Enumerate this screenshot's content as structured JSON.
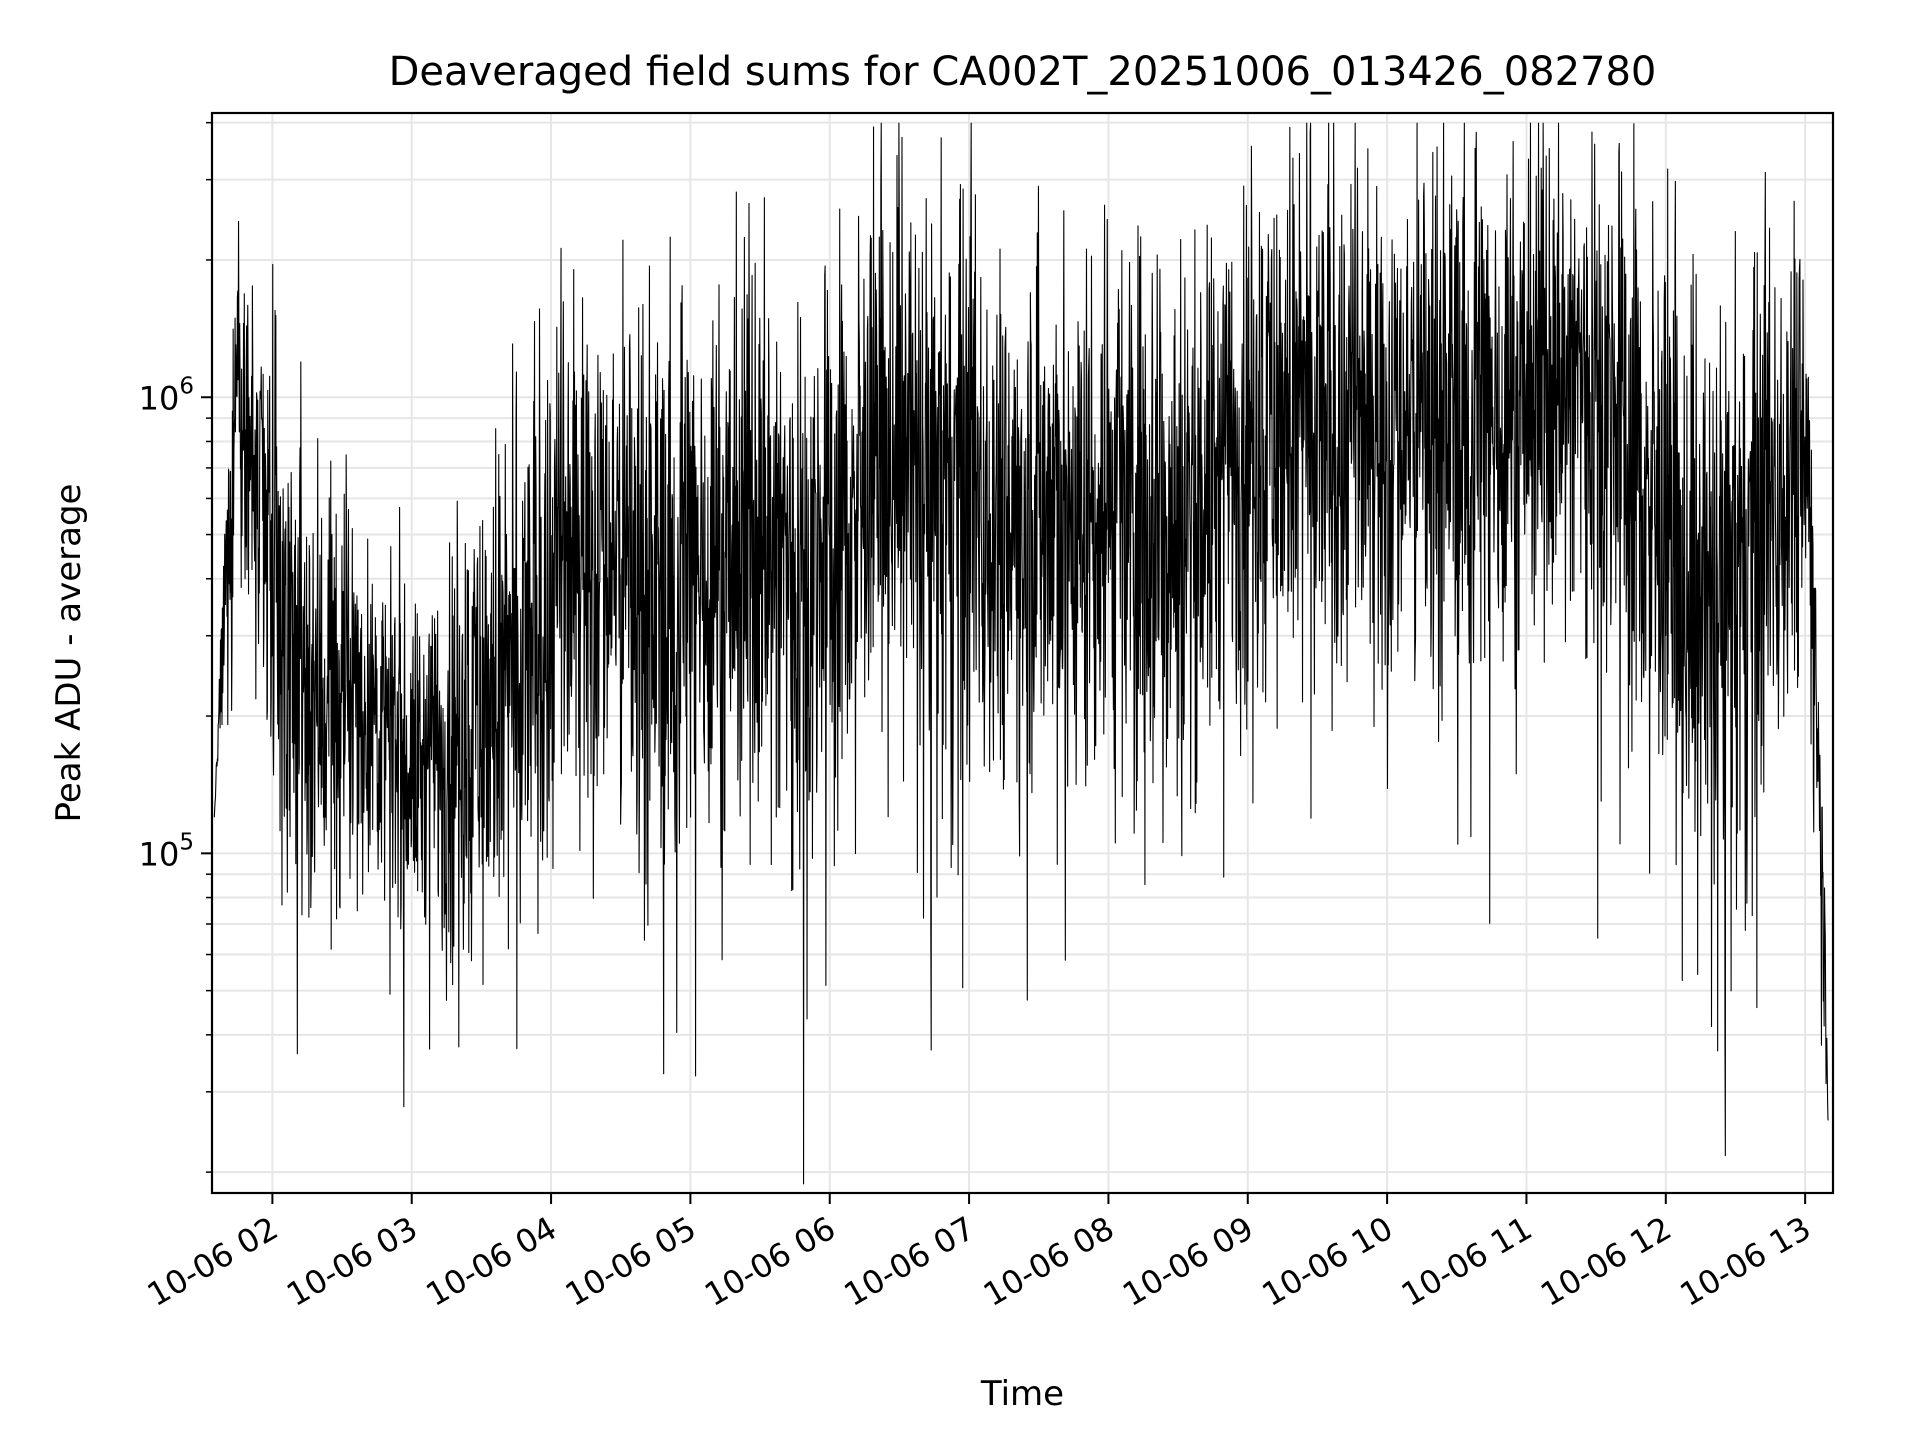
{
  "chart_data": {
    "type": "line",
    "title": "Deaveraged field sums for CA002T_20251006_013426_082780",
    "xlabel": "Time",
    "ylabel": "Peak ADU - average",
    "yscale": "log",
    "ylim": [
      18000,
      4200000
    ],
    "xlim": [
      "2025-10-06 01:34",
      "2025-10-06 13:12"
    ],
    "grid": true,
    "line_color": "#000000",
    "x_ticks": [
      "10-06 02",
      "10-06 03",
      "10-06 04",
      "10-06 05",
      "10-06 06",
      "10-06 07",
      "10-06 08",
      "10-06 09",
      "10-06 10",
      "10-06 11",
      "10-06 12",
      "10-06 13"
    ],
    "y_ticks": [
      {
        "value": 100000,
        "base": "10",
        "exp": "5"
      },
      {
        "value": 1000000,
        "base": "10",
        "exp": "6"
      }
    ],
    "series": [
      {
        "x": [
          "2025-10-06 01:35",
          "2025-10-06 01:42",
          "2025-10-06 01:45",
          "2025-10-06 01:48",
          "2025-10-06 01:52",
          "2025-10-06 02:00",
          "2025-10-06 02:15",
          "2025-10-06 02:30",
          "2025-10-06 02:45",
          "2025-10-06 03:00",
          "2025-10-06 03:15",
          "2025-10-06 03:30",
          "2025-10-06 03:45",
          "2025-10-06 04:00",
          "2025-10-06 04:15",
          "2025-10-06 04:30",
          "2025-10-06 04:45",
          "2025-10-06 05:00",
          "2025-10-06 05:15",
          "2025-10-06 05:30",
          "2025-10-06 05:45",
          "2025-10-06 06:00",
          "2025-10-06 06:15",
          "2025-10-06 06:30",
          "2025-10-06 06:45",
          "2025-10-06 07:00",
          "2025-10-06 07:15",
          "2025-10-06 07:30",
          "2025-10-06 07:45",
          "2025-10-06 08:00",
          "2025-10-06 08:15",
          "2025-10-06 08:30",
          "2025-10-06 08:45",
          "2025-10-06 09:00",
          "2025-10-06 09:15",
          "2025-10-06 09:30",
          "2025-10-06 09:45",
          "2025-10-06 10:00",
          "2025-10-06 10:15",
          "2025-10-06 10:30",
          "2025-10-06 10:45",
          "2025-10-06 11:00",
          "2025-10-06 11:15",
          "2025-10-06 11:30",
          "2025-10-06 11:45",
          "2025-10-06 12:00",
          "2025-10-06 12:15",
          "2025-10-06 12:30",
          "2025-10-06 12:45",
          "2025-10-06 13:00",
          "2025-10-06 13:05",
          "2025-10-06 13:10"
        ],
        "center": [
          120000,
          600000,
          1300000,
          1100000,
          650000,
          380000,
          230000,
          220000,
          200000,
          150000,
          170000,
          210000,
          230000,
          380000,
          500000,
          450000,
          380000,
          420000,
          450000,
          500000,
          420000,
          450000,
          600000,
          850000,
          600000,
          650000,
          550000,
          600000,
          520000,
          520000,
          600000,
          500000,
          650000,
          850000,
          900000,
          850000,
          900000,
          850000,
          950000,
          1000000,
          900000,
          1050000,
          1100000,
          1150000,
          750000,
          450000,
          350000,
          380000,
          600000,
          900000,
          250000,
          30000
        ],
        "spread": [
          0,
          0.3,
          0.4,
          0.4,
          0.45,
          0.5,
          0.45,
          0.4,
          0.3,
          0.3,
          0.4,
          0.45,
          0.5,
          0.55,
          0.5,
          0.5,
          0.55,
          0.55,
          0.55,
          0.55,
          0.55,
          0.55,
          0.5,
          0.5,
          0.55,
          0.55,
          0.5,
          0.55,
          0.55,
          0.5,
          0.55,
          0.55,
          0.5,
          0.5,
          0.5,
          0.55,
          0.5,
          0.5,
          0.5,
          0.5,
          0.55,
          0.5,
          0.45,
          0.5,
          0.55,
          0.55,
          0.55,
          0.55,
          0.5,
          0.45,
          0.3,
          0.1
        ]
      }
    ]
  }
}
